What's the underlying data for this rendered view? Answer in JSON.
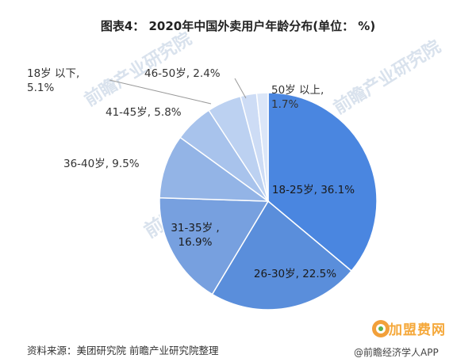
{
  "chart_data": {
    "type": "pie",
    "title": "图表4： 2020年中国外卖用户年龄分布(单位： %)",
    "categories": [
      "18-25岁",
      "26-30岁",
      "31-35岁",
      "36-40岁",
      "41-45岁",
      "18岁以下",
      "46-50岁",
      "50岁以上"
    ],
    "values": [
      36.1,
      22.5,
      16.9,
      9.5,
      5.8,
      5.1,
      2.4,
      1.7
    ],
    "labels": [
      [
        "18-25岁, 36.1%"
      ],
      [
        "26-30岁, 22.5%"
      ],
      [
        "31-35岁 ,",
        "16.9%"
      ],
      [
        "36-40岁, 9.5%"
      ],
      [
        "41-45岁, 5.8%"
      ],
      [
        "18岁 以下,",
        "5.1%"
      ],
      [
        "46-50岁, 2.4%"
      ],
      [
        "50岁 以上,",
        "1.7%"
      ]
    ],
    "colors": [
      "#4a86e0",
      "#5a8edb",
      "#77a0df",
      "#93b4e6",
      "#a8c3ec",
      "#bcd1f1",
      "#cddcf5",
      "#dbe6f8"
    ],
    "start_angle_deg": 0,
    "direction": "clockwise",
    "legend": "none"
  },
  "footer": {
    "source": "资料来源：美团研究院 前瞻产业研究院整理",
    "brand_logo_text": "加盟费网",
    "brand_site": "@前瞻经济学人APP"
  },
  "watermark": {
    "text": "前瞻产业研究院"
  }
}
